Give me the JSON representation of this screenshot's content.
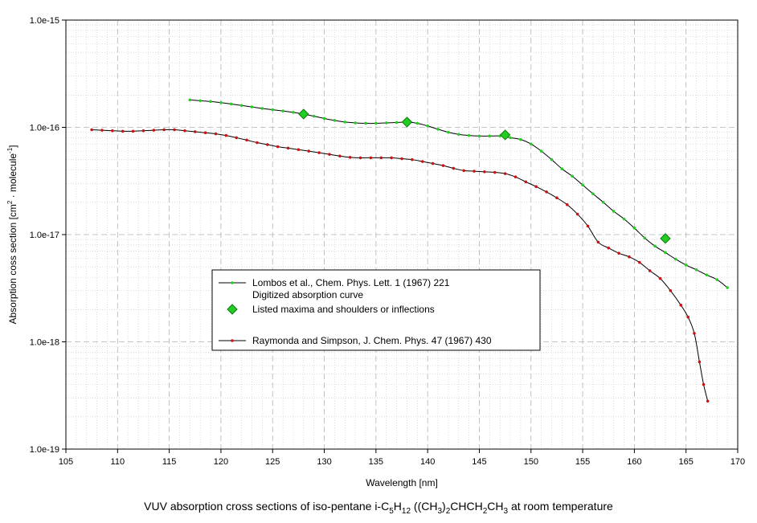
{
  "chart_data": {
    "type": "line",
    "xlabel": "Wavelength [nm]",
    "ylabel": {
      "prefix": "Absorption coss section [cm",
      "sup1": "2",
      "middle": " · molecule",
      "sup2": "-1",
      "suffix": "]"
    },
    "caption": {
      "p1": "VUV absorption cross sections of iso-pentane i-C",
      "s1": "5",
      "p2": "H",
      "s2": "12",
      "p3": " ((CH",
      "s3": "3",
      "p4": ")",
      "s4": "2",
      "p5": "CHCH",
      "s5": "2",
      "p6": "CH",
      "s6": "3",
      "p7": " at room temperature"
    },
    "xlim": [
      105,
      170
    ],
    "ylim": [
      1e-19,
      1e-15
    ],
    "y_scale": "log",
    "x_ticks": [
      "105",
      "110",
      "115",
      "120",
      "125",
      "130",
      "135",
      "140",
      "145",
      "150",
      "155",
      "160",
      "165",
      "170"
    ],
    "y_ticks": [
      "1.0e-19",
      "1.0e-18",
      "1.0e-17",
      "1.0e-16",
      "1.0e-15"
    ],
    "grid": true,
    "legend_position": "center-left",
    "series": [
      {
        "name": "Lombos et al., Chem. Phys. Lett. 1 (1967) 221",
        "subtitle": "Digitized absorption curve",
        "color": "#22cc22",
        "line_color": "#000000",
        "x": [
          117,
          118,
          119,
          120,
          121,
          122,
          123,
          124,
          125,
          126,
          127,
          128,
          129,
          130,
          131,
          132,
          133,
          134,
          135,
          136,
          137,
          138,
          139,
          140,
          141,
          142,
          143,
          144,
          145,
          146,
          147,
          148,
          149,
          150,
          151,
          152,
          153,
          154,
          155,
          156,
          157,
          158,
          159,
          160,
          161,
          162,
          163,
          164,
          165,
          166,
          167,
          168,
          169
        ],
        "y": [
          1.8e-16,
          1.77e-16,
          1.74e-16,
          1.7e-16,
          1.65e-16,
          1.6e-16,
          1.55e-16,
          1.5e-16,
          1.46e-16,
          1.42e-16,
          1.38e-16,
          1.33e-16,
          1.27e-16,
          1.21e-16,
          1.16e-16,
          1.12e-16,
          1.1e-16,
          1.09e-16,
          1.09e-16,
          1.1e-16,
          1.11e-16,
          1.12e-16,
          1.09e-16,
          1.03e-16,
          9.6e-17,
          9e-17,
          8.6e-17,
          8.4e-17,
          8.3e-17,
          8.3e-17,
          8.3e-17,
          8e-17,
          7.7e-17,
          7e-17,
          6e-17,
          5e-17,
          4.1e-17,
          3.5e-17,
          2.9e-17,
          2.4e-17,
          2e-17,
          1.65e-17,
          1.4e-17,
          1.15e-17,
          9.3e-18,
          7.8e-18,
          6.8e-18,
          5.9e-18,
          5.2e-18,
          4.7e-18,
          4.2e-18,
          3.8e-18,
          3.2e-18
        ]
      },
      {
        "name": "Listed maxima and shoulders or inflections",
        "color": "#22cc22",
        "marker": "diamond",
        "x": [
          128,
          138,
          147.5,
          163
        ],
        "y": [
          1.33e-16,
          1.12e-16,
          8.5e-17,
          9.2e-18
        ]
      },
      {
        "name": "Raymonda and Simpson, J. Chem. Phys. 47 (1967) 430",
        "color": "#cc1111",
        "line_color": "#000000",
        "x": [
          107.5,
          108.5,
          109.5,
          110.5,
          111.5,
          112.5,
          113.5,
          114.5,
          115.5,
          116.5,
          117.5,
          118.5,
          119.5,
          120.5,
          121.5,
          122.5,
          123.5,
          124.5,
          125.5,
          126.5,
          127.5,
          128.5,
          129.5,
          130.5,
          131.5,
          132.5,
          133.5,
          134.5,
          135.5,
          136.5,
          137.5,
          138.5,
          139.5,
          140.5,
          141.5,
          142.5,
          143.5,
          144.5,
          145.5,
          146.5,
          147.5,
          148.5,
          149.5,
          150.5,
          151.5,
          152.5,
          153.5,
          154.5,
          155.5,
          156.5,
          157.5,
          158.5,
          159.5,
          160.5,
          161.5,
          162.5,
          163.5,
          164.5,
          165.2,
          165.8,
          166.3,
          166.7,
          167.1
        ],
        "y": [
          9.5e-17,
          9.4e-17,
          9.3e-17,
          9.2e-17,
          9.2e-17,
          9.3e-17,
          9.4e-17,
          9.5e-17,
          9.5e-17,
          9.3e-17,
          9.1e-17,
          8.9e-17,
          8.7e-17,
          8.4e-17,
          8e-17,
          7.6e-17,
          7.2e-17,
          6.9e-17,
          6.6e-17,
          6.4e-17,
          6.2e-17,
          6e-17,
          5.8e-17,
          5.6e-17,
          5.4e-17,
          5.25e-17,
          5.2e-17,
          5.2e-17,
          5.2e-17,
          5.2e-17,
          5.1e-17,
          5e-17,
          4.8e-17,
          4.6e-17,
          4.4e-17,
          4.15e-17,
          3.95e-17,
          3.9e-17,
          3.85e-17,
          3.8e-17,
          3.7e-17,
          3.45e-17,
          3.1e-17,
          2.8e-17,
          2.5e-17,
          2.2e-17,
          1.9e-17,
          1.55e-17,
          1.2e-17,
          8.5e-18,
          7.5e-18,
          6.7e-18,
          6.2e-18,
          5.5e-18,
          4.6e-18,
          3.9e-18,
          3e-18,
          2.2e-18,
          1.7e-18,
          1.2e-18,
          6.5e-19,
          4e-19,
          2.8e-19
        ]
      }
    ]
  }
}
